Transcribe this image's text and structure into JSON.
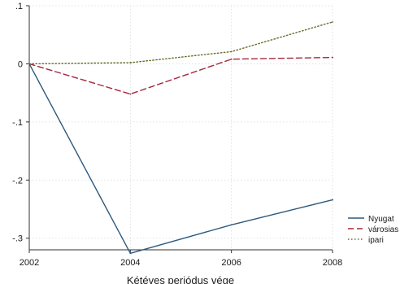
{
  "chart_data": {
    "type": "line",
    "title": "",
    "xlabel": "Kétéves periódus vége",
    "ylabel": "",
    "x": [
      2002,
      2004,
      2006,
      2008
    ],
    "xlim": [
      2002,
      2008
    ],
    "ylim": [
      -0.32,
      0.1
    ],
    "x_ticks": [
      2002,
      2004,
      2006,
      2008
    ],
    "x_tick_labels": [
      "2002",
      "2004",
      "2006",
      "2008"
    ],
    "y_ticks": [
      0.1,
      0,
      -0.1,
      -0.2,
      -0.3
    ],
    "y_tick_labels": [
      ".1",
      "0",
      "-.1",
      "-.2",
      "-.3"
    ],
    "grid": true,
    "legend_position": "bottom-right",
    "series": [
      {
        "name": "Nyugat",
        "values": [
          0,
          -0.326,
          -0.277,
          -0.234
        ],
        "color": "#2d5a7f",
        "dash": "solid"
      },
      {
        "name": "városias",
        "values": [
          0,
          -0.052,
          0.008,
          0.011
        ],
        "color": "#a4283d",
        "dash": "dashed"
      },
      {
        "name": "ipari",
        "values": [
          0,
          0.002,
          0.021,
          0.072
        ],
        "color": "#6b6b2e",
        "dash": "dotted"
      }
    ]
  }
}
